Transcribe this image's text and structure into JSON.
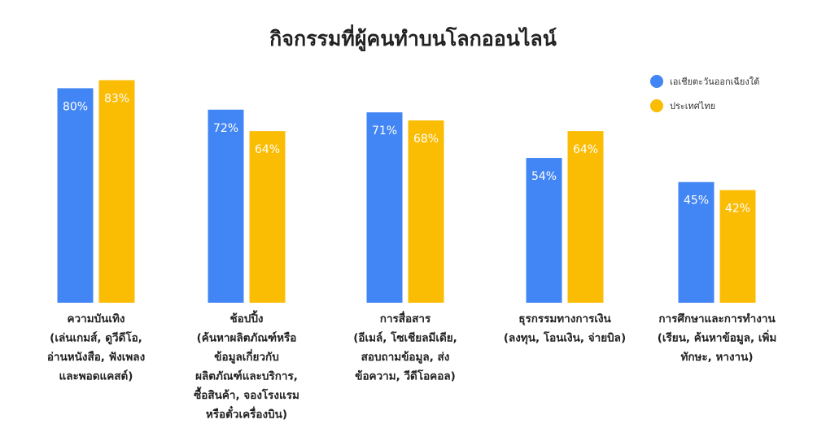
{
  "chart_data": {
    "type": "bar",
    "title": "กิจกรรมที่ผู้คนทำบนโลกออนไลน์",
    "xlabel": "",
    "ylabel": "",
    "ylim": [
      0,
      100
    ],
    "grid": false,
    "legend_position": "top-right",
    "categories": [
      [
        "ความบันเทิง",
        "(เล่นเกมส์, ดูวีดีโอ,",
        "อ่านหนังสือ, ฟังเพลง",
        "และพอดแคสต์)"
      ],
      [
        "ช้อปปิ้ง",
        "(ค้นหาผลิตภัณฑ์หรือ",
        "ข้อมูลเกี่ยวกับ",
        "ผลิตภัณฑ์และบริการ,",
        "ซื้อสินค้า, จองโรงแรม",
        "หรือตั๋วเครื่องบิน)"
      ],
      [
        "การสื่อสาร",
        "(อีเมล์, โซเชียลมีเดีย,",
        "สอบถามข้อมูล, ส่ง",
        "ข้อความ, วีดีโอคอล)"
      ],
      [
        "ธุรกรรมทางการเงิน",
        "(ลงทุน, โอนเงิน, จ่ายบิล)"
      ],
      [
        "การศึกษาและการทำงาน",
        "(เรียน, ค้นหาข้อมูล, เพิ่ม",
        "ทักษะ, หางาน)"
      ]
    ],
    "series": [
      {
        "name": "เอเชียตะวันออกเฉียงใต้",
        "color": "#4285F4",
        "values": [
          80,
          72,
          71,
          54,
          45
        ],
        "labels": [
          "80%",
          "72%",
          "71%",
          "54%",
          "45%"
        ]
      },
      {
        "name": "ประเทศไทย",
        "color": "#FBBC04",
        "values": [
          83,
          64,
          68,
          64,
          42
        ],
        "labels": [
          "83%",
          "64%",
          "68%",
          "64%",
          "42%"
        ]
      }
    ]
  }
}
